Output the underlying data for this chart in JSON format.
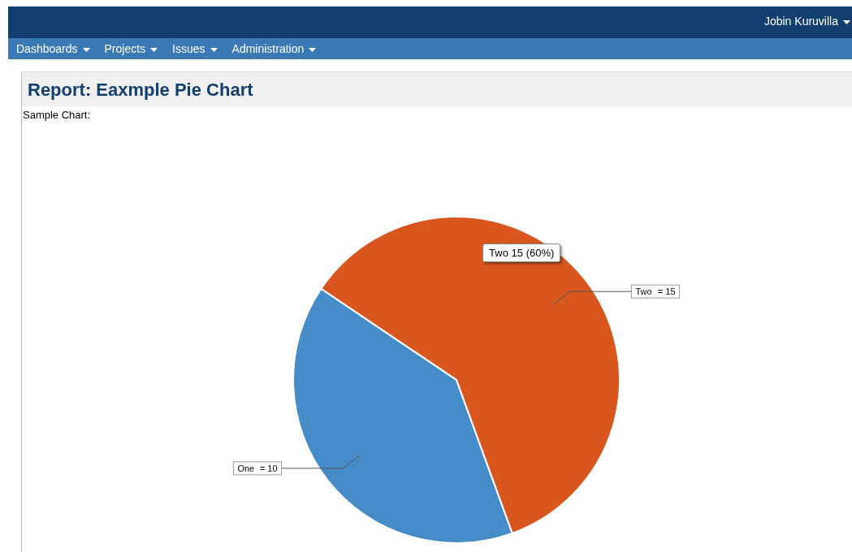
{
  "chart_data": {
    "type": "pie",
    "title": "Report: Eaxmple Pie Chart",
    "subtitle": "Sample Chart:",
    "categories": [
      "One",
      "Two"
    ],
    "values": [
      10,
      15
    ],
    "colors": [
      "#468cc8",
      "#d9561f"
    ],
    "value_labels": [
      "= 10",
      "= 15"
    ],
    "annotations": [
      "Jobin Kuruvilla",
      "Dashboards",
      "Projects",
      "Issues",
      "Administration",
      {
        "text": "Two 15 (60%)",
        "x": "Two"
      }
    ]
  }
}
